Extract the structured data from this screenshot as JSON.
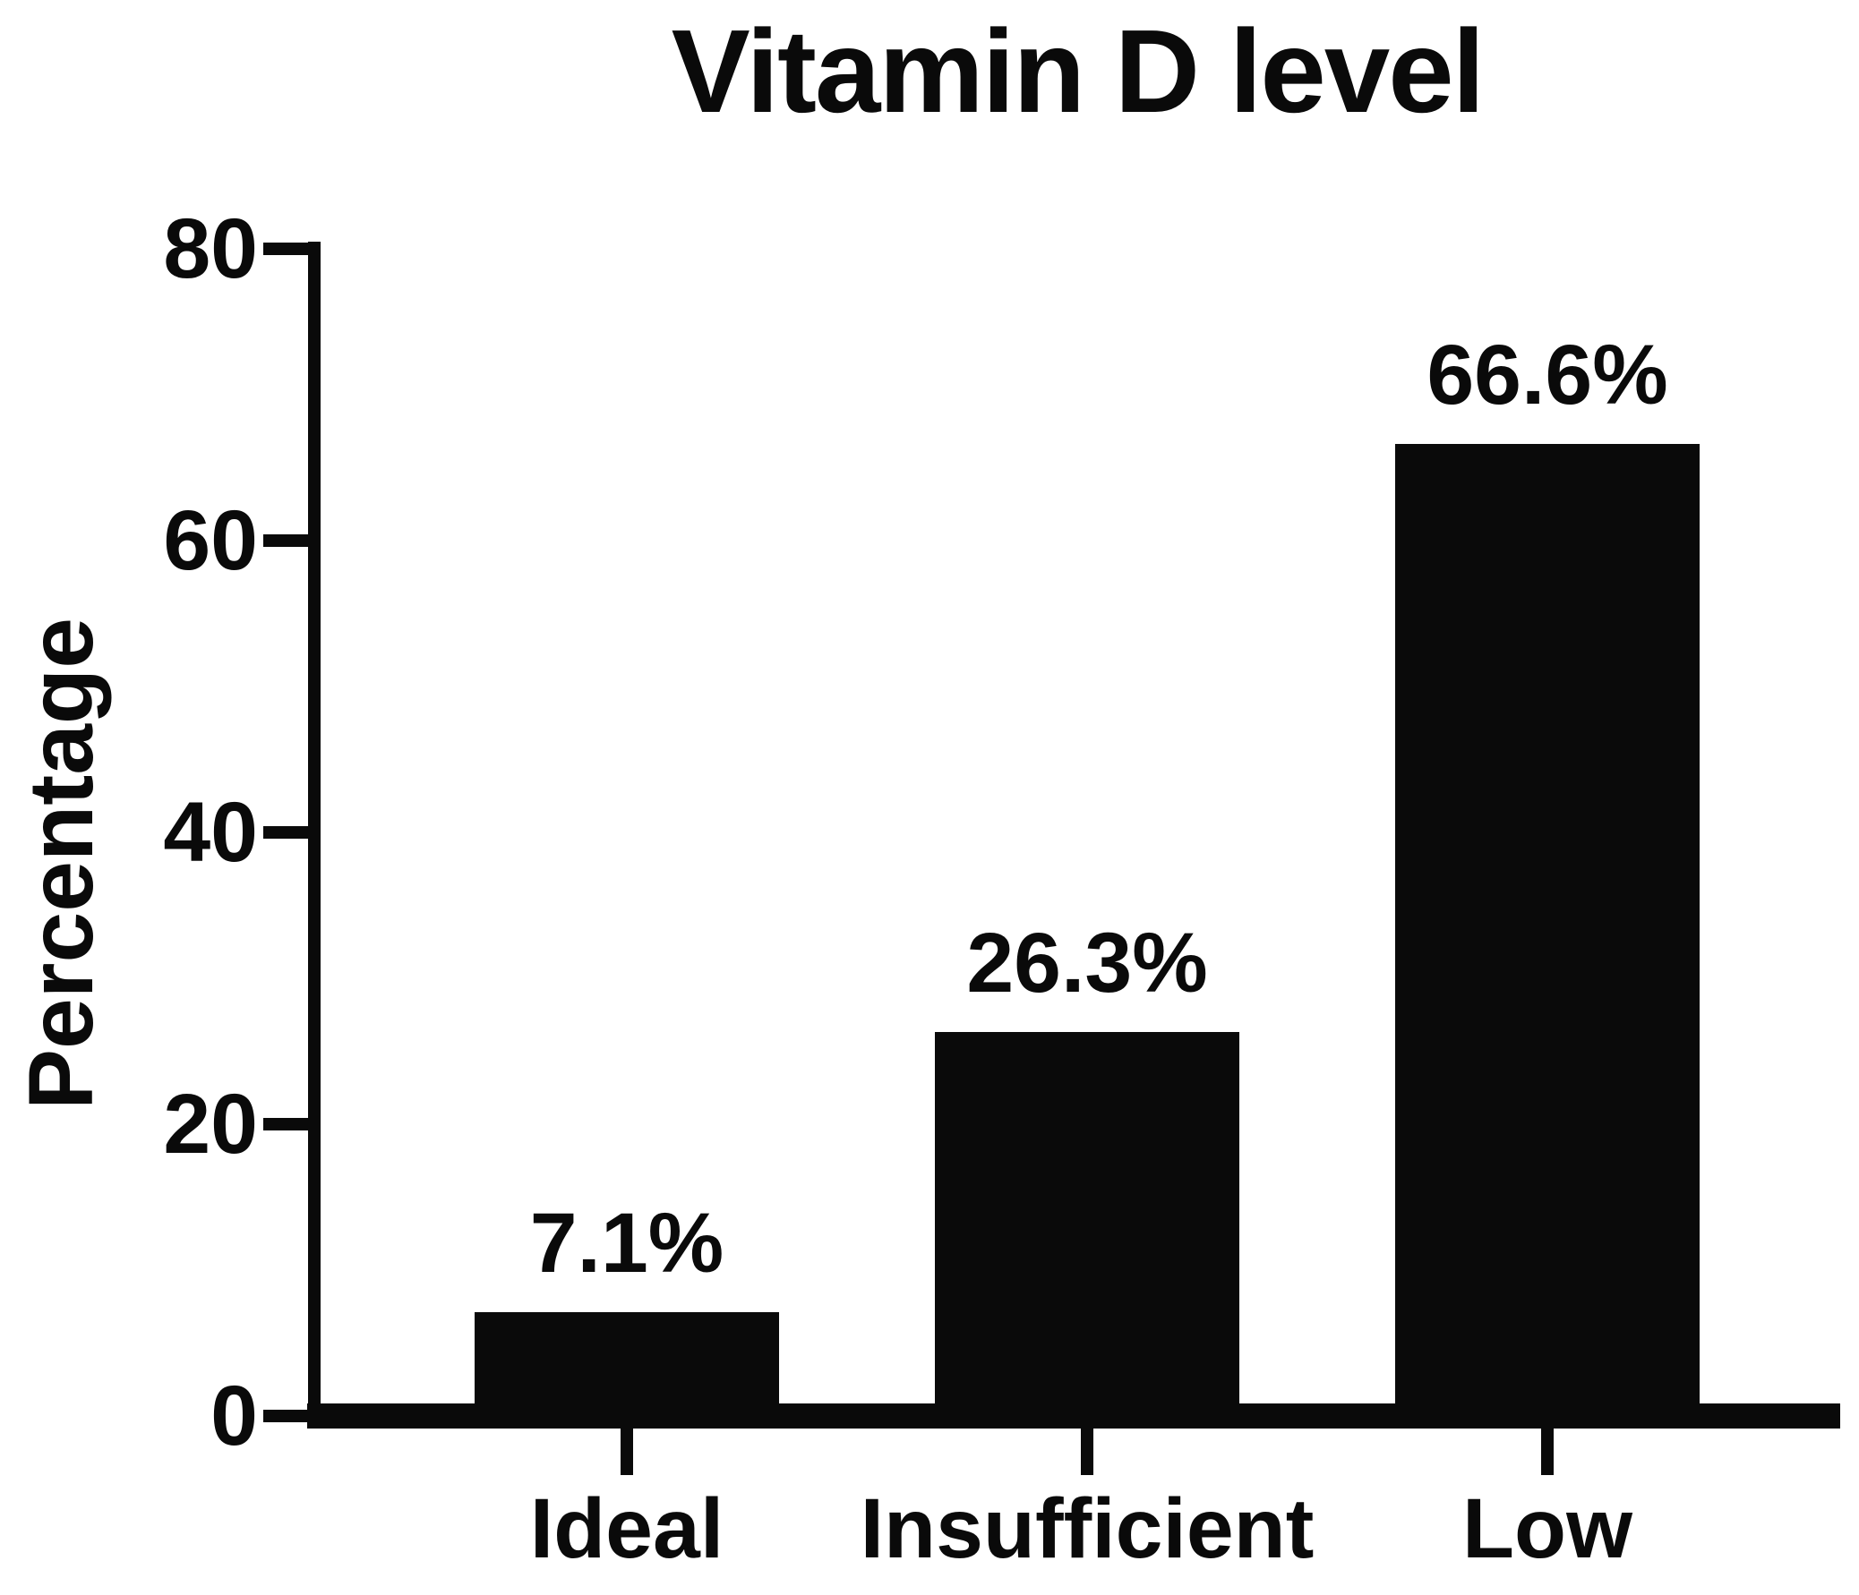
{
  "figure": {
    "background_color": "#ffffff",
    "foreground_color": "#0a0a0a"
  },
  "chart_data": {
    "type": "bar",
    "title": "Vitamin D level",
    "xlabel": "",
    "ylabel": "Percentage",
    "categories": [
      "Ideal",
      "Insufficient",
      "Low"
    ],
    "values": [
      7.1,
      26.3,
      66.6
    ],
    "value_labels": [
      "7.1%",
      "26.3%",
      "66.6%"
    ],
    "ylim": [
      0,
      80
    ],
    "yticks": [
      0,
      20,
      40,
      60,
      80
    ],
    "ytick_labels": [
      "0",
      "20",
      "40",
      "60",
      "80"
    ],
    "bar_color": "#0a0a0a",
    "grid": false,
    "legend_position": "none"
  }
}
